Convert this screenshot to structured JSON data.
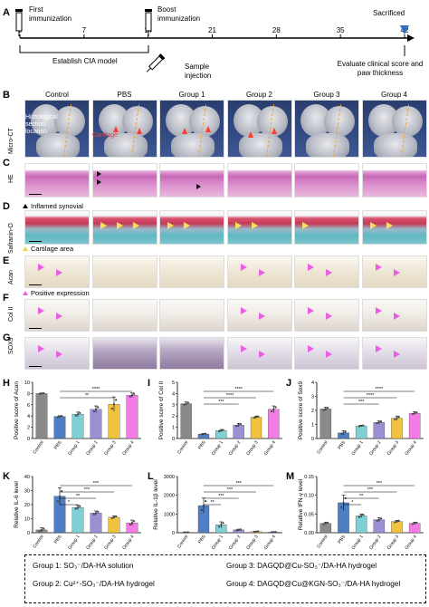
{
  "panel_labels": {
    "A": "A",
    "B": "B",
    "C": "C",
    "D": "D",
    "E": "E",
    "F": "F",
    "G": "G",
    "H": "H",
    "I": "I",
    "J": "J",
    "K": "K",
    "L": "L",
    "M": "M"
  },
  "timeline": {
    "ticks": [
      "0",
      "7",
      "14",
      "21",
      "28",
      "35",
      "42"
    ],
    "first_immunization": "First immunization",
    "boost_immunization": "Boost immunization",
    "sacrificed": "Sacrificed",
    "establish": "Establish CIA model",
    "sample_injection": "Sample injection",
    "evaluate": "Evaluate clinical score and paw thickness"
  },
  "columns": [
    "Control",
    "PBS",
    "Group 1",
    "Group 2",
    "Group 3",
    "Group 4"
  ],
  "rows": {
    "microct": "Micro-CT",
    "he": "HE",
    "safranin": "Safranin-O",
    "acan": "Acan",
    "col2": "Col II",
    "sox9": "SOX9"
  },
  "annotations": {
    "histological": "Histological section location",
    "cartilage_damage": "Cartilage",
    "inflamed": "Inflamed synovial",
    "cartilage_area": "Cartilage area",
    "positive_expression": "Positive expression"
  },
  "colors": {
    "control": "#8a8a8a",
    "pbs": "#4f7ec4",
    "g1": "#7ed0d4",
    "g2": "#9b8fd6",
    "g3": "#f0c23e",
    "g4": "#f47ae6",
    "timeline_marker": "#2f6fc4",
    "pink_marker": "#ea5ee3",
    "yellow_marker": "#f3e35a"
  },
  "chart_data": [
    {
      "id": "H",
      "type": "bar",
      "ylabel": "Positive score of Acan",
      "categories": [
        "Control",
        "PBS",
        "Group 1",
        "Group 2",
        "Group 3",
        "Group 4"
      ],
      "values": [
        8.0,
        3.9,
        4.3,
        5.2,
        6.1,
        7.7
      ],
      "errors": [
        0.1,
        0.15,
        0.4,
        0.6,
        1.3,
        0.4
      ],
      "ylim": [
        0,
        10
      ],
      "yticks": [
        "0",
        "2",
        "4",
        "6",
        "8",
        "10"
      ],
      "sig": [
        "**",
        "****"
      ]
    },
    {
      "id": "I",
      "type": "bar",
      "ylabel": "Positive score of Col II",
      "categories": [
        "Control",
        "PBS",
        "Group 1",
        "Group 2",
        "Group 3",
        "Group 4"
      ],
      "values": [
        3.1,
        0.4,
        0.7,
        1.2,
        1.9,
        2.6
      ],
      "errors": [
        0.15,
        0.05,
        0.1,
        0.15,
        0.1,
        0.3
      ],
      "ylim": [
        0,
        5
      ],
      "yticks": [
        "0",
        "1",
        "2",
        "3",
        "4",
        "5"
      ],
      "sig": [
        "***",
        "****",
        "****"
      ]
    },
    {
      "id": "J",
      "type": "bar",
      "ylabel": "Positive score of Sox9",
      "categories": [
        "Control",
        "PBS",
        "Group 1",
        "Group 2",
        "Group 3",
        "Group 4"
      ],
      "values": [
        2.1,
        0.4,
        0.9,
        1.15,
        1.45,
        1.8
      ],
      "errors": [
        0.12,
        0.15,
        0.05,
        0.1,
        0.15,
        0.1
      ],
      "ylim": [
        0,
        4
      ],
      "yticks": [
        "0",
        "1",
        "2",
        "3",
        "4"
      ],
      "sig": [
        "***",
        "****",
        "****"
      ]
    },
    {
      "id": "K",
      "type": "bar",
      "ylabel": "Relative IL-6 level",
      "categories": [
        "Control",
        "PBS",
        "Group 1",
        "Group 2",
        "Group 3",
        "Group 4"
      ],
      "values": [
        2,
        26,
        18,
        14,
        11,
        7
      ],
      "errors": [
        1.5,
        6,
        1.5,
        1.5,
        1,
        2
      ],
      "ylim": [
        0,
        40
      ],
      "yticks": [
        "0",
        "10",
        "20",
        "30",
        "40"
      ],
      "sig": [
        "*",
        "**",
        "***",
        "***"
      ]
    },
    {
      "id": "L",
      "type": "bar",
      "ylabel": "Relative IL-1β level",
      "categories": [
        "Control",
        "PBS",
        "Group 1",
        "Group 2",
        "Group 3",
        "Group 4"
      ],
      "values": [
        20,
        1450,
        420,
        150,
        60,
        40
      ],
      "errors": [
        5,
        400,
        160,
        40,
        20,
        10
      ],
      "ylim": [
        0,
        3000
      ],
      "yticks": [
        "0",
        "1000",
        "2000",
        "3000"
      ],
      "sig": [
        "**",
        "***",
        "***",
        "***"
      ]
    },
    {
      "id": "M",
      "type": "bar",
      "ylabel": "Relative IFN-γ level",
      "categories": [
        "Control",
        "PBS",
        "Group 1",
        "Group 2",
        "Group 3",
        "Group 4"
      ],
      "values": [
        0.025,
        0.08,
        0.045,
        0.035,
        0.03,
        0.025
      ],
      "errors": [
        0.003,
        0.02,
        0.005,
        0.005,
        0.003,
        0.003
      ],
      "ylim": [
        0,
        0.15
      ],
      "yticks": [
        "0.00",
        "0.05",
        "0.10",
        "0.15"
      ],
      "sig": [
        "*",
        "**",
        "***",
        "***"
      ]
    }
  ],
  "legend": {
    "g1": "Group 1: SO₃⁻/DA-HA solution",
    "g2": "Group 2: Cu²⁺-SO₃⁻/DA-HA hydrogel",
    "g3": "Group 3: DAGQD@Cu-SO₃⁻/DA-HA hydrogel",
    "g4": "Group 4: DAGQD@Cu@KGN-SO₃⁻/DA-HA hydrogel"
  }
}
